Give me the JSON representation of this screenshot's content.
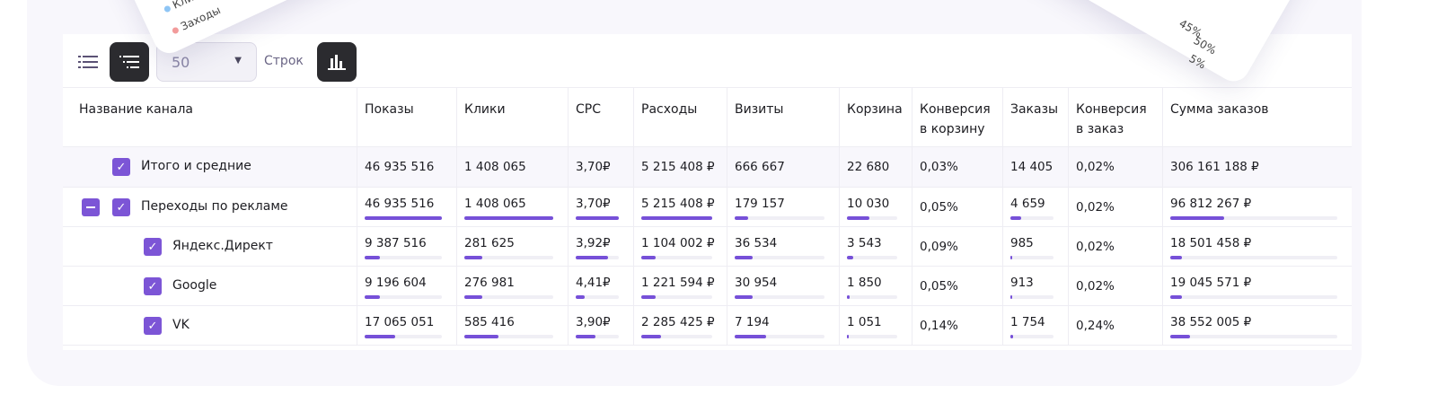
{
  "toolbar": {
    "rows_value": "50",
    "rows_label": "Строк"
  },
  "overlay_left": {
    "legend": [
      {
        "label": "Клики",
        "color": "#8ec5f5"
      },
      {
        "label": "Заходы",
        "color": "#f29b9b"
      }
    ]
  },
  "overlay_right": {
    "percents": [
      "45%",
      "50%",
      "5%"
    ]
  },
  "accent": "#7650d8",
  "columns": [
    "Название канала",
    "Показы",
    "Клики",
    "CPC",
    "Расходы",
    "Визиты",
    "Корзина",
    "Конверсия в корзину",
    "Заказы",
    "Конверсия в заказ",
    "Сумма заказов"
  ],
  "rows": [
    {
      "name": "Итого и средние",
      "values": [
        "46 935 516",
        "1 408 065",
        "3,70₽",
        "5 215 408 ₽",
        "666 667",
        "22 680",
        "0,03%",
        "14 405",
        "0,02%",
        "306 161 188 ₽"
      ],
      "bars": null
    },
    {
      "name": "Переходы по рекламе",
      "values": [
        "46 935 516",
        "1 408 065",
        "3,70₽",
        "5 215 408 ₽",
        "179 157",
        "10 030",
        "0,05%",
        "4 659",
        "0,02%",
        "96 812 267 ₽"
      ],
      "bars": [
        1,
        1,
        1,
        1,
        0.15,
        0.45,
        null,
        0.25,
        null,
        0.32
      ]
    },
    {
      "name": "Яндекс.Директ",
      "values": [
        "9 387 516",
        "281 625",
        "3,92₽",
        "1 104 002 ₽",
        "36 534",
        "3 543",
        "0,09%",
        "985",
        "0,02%",
        "18 501 458 ₽"
      ],
      "bars": [
        0.2,
        0.2,
        0.75,
        0.2,
        0.2,
        0.12,
        null,
        0.04,
        null,
        0.07
      ]
    },
    {
      "name": "Google",
      "values": [
        "9 196 604",
        "276 981",
        "4,41₽",
        "1 221 594 ₽",
        "30 954",
        "1 850",
        "0,05%",
        "913",
        "0,02%",
        "19 045 571 ₽"
      ],
      "bars": [
        0.2,
        0.2,
        0.2,
        0.2,
        0.2,
        0.06,
        null,
        0.04,
        null,
        0.07
      ]
    },
    {
      "name": "VK",
      "values": [
        "17 065 051",
        "585 416",
        "3,90₽",
        "2 285 425 ₽",
        "7 194",
        "1 051",
        "0,14%",
        "1 754",
        "0,24%",
        "38 552 005 ₽"
      ],
      "bars": [
        0.4,
        0.38,
        0.45,
        0.28,
        0.35,
        0.03,
        null,
        0.07,
        null,
        0.12
      ]
    }
  ]
}
